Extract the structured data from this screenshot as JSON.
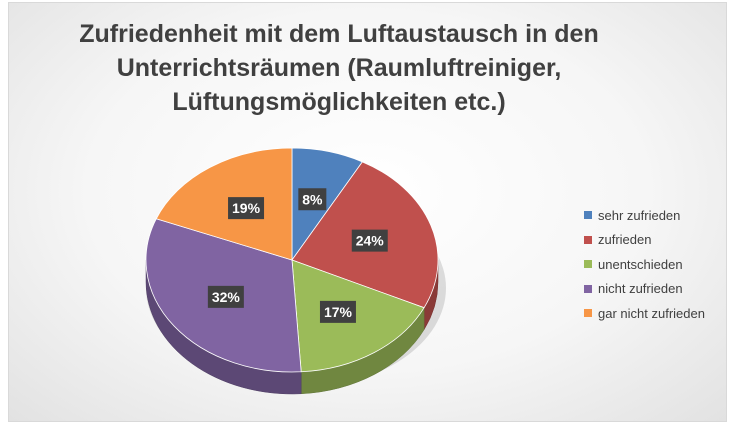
{
  "chart_data": {
    "type": "pie",
    "title": "Zufriedenheit mit dem Luftaustausch in den Unterrichtsräumen (Raumluftreiniger, Lüftungsmöglichkeiten etc.)",
    "title_lines": [
      "Zufriedenheit mit dem Luftaustausch in den",
      "Unterrichtsräumen (Raumluftreiniger,",
      "Lüftungsmöglichkeiten etc.)"
    ],
    "categories": [
      "sehr zufrieden",
      "zufrieden",
      "unentschieden",
      "nicht zufrieden",
      "gar nicht zufrieden"
    ],
    "values": [
      8,
      24,
      17,
      32,
      19
    ],
    "labels": [
      "8%",
      "24%",
      "17%",
      "32%",
      "19%"
    ],
    "unit": "%",
    "colors": [
      "#4f81bd",
      "#c0504d",
      "#9bbb59",
      "#8064a2",
      "#f79646"
    ],
    "legend_position": "right",
    "style": "3d-pie"
  }
}
